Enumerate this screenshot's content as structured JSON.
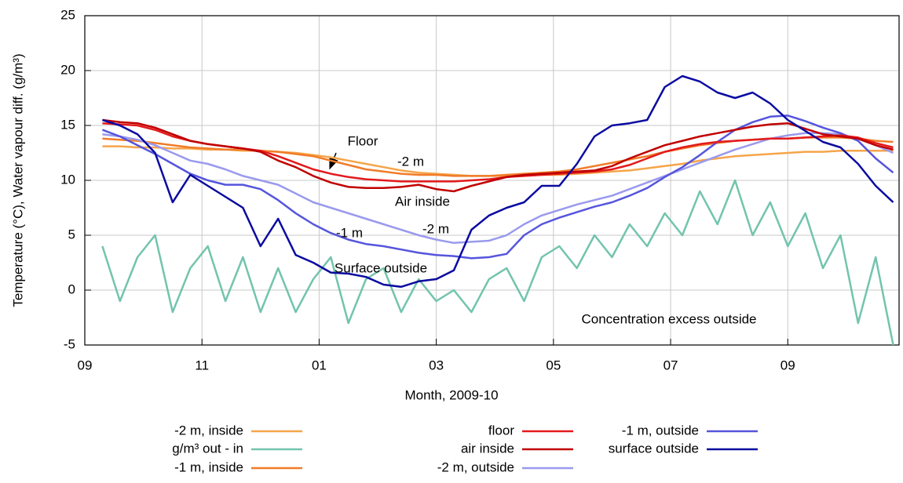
{
  "chart_data": {
    "type": "line",
    "xlabel": "Month, 2009-10",
    "ylabel": "Temperature (°C), Water vapour diff. (g/m³)",
    "x": [
      0.3,
      0.6,
      0.9,
      1.2,
      1.5,
      1.8,
      2.1,
      2.4,
      2.7,
      3.0,
      3.3,
      3.6,
      3.9,
      4.2,
      4.5,
      4.8,
      5.1,
      5.4,
      5.7,
      6.0,
      6.3,
      6.6,
      6.9,
      7.2,
      7.5,
      7.8,
      8.1,
      8.4,
      8.7,
      9.0,
      9.3,
      9.6,
      9.9,
      10.2,
      10.5,
      10.8,
      11.1,
      11.4,
      11.7,
      12.0,
      12.3,
      12.6,
      12.9,
      13.2,
      13.5,
      13.8
    ],
    "xlim": [
      0,
      13.9
    ],
    "xticks": [
      {
        "value": 0,
        "label": "09"
      },
      {
        "value": 2,
        "label": "11"
      },
      {
        "value": 4,
        "label": "01"
      },
      {
        "value": 6,
        "label": "03"
      },
      {
        "value": 8,
        "label": "05"
      },
      {
        "value": 10,
        "label": "07"
      },
      {
        "value": 12,
        "label": "09"
      }
    ],
    "ylim": [
      -5,
      25
    ],
    "yticks": [
      -5,
      0,
      5,
      10,
      15,
      20,
      25
    ],
    "grid": true,
    "series": [
      {
        "name": "-2 m, inside",
        "color": "#f5a54a",
        "values": [
          13.1,
          13.1,
          13.0,
          13.0,
          12.9,
          12.9,
          12.8,
          12.8,
          12.7,
          12.7,
          12.6,
          12.5,
          12.3,
          12.1,
          11.8,
          11.5,
          11.2,
          10.9,
          10.7,
          10.6,
          10.5,
          10.4,
          10.4,
          10.4,
          10.4,
          10.5,
          10.5,
          10.6,
          10.7,
          10.8,
          10.9,
          11.1,
          11.3,
          11.5,
          11.8,
          12.0,
          12.2,
          12.3,
          12.4,
          12.5,
          12.6,
          12.6,
          12.7,
          12.7,
          12.7,
          12.7
        ]
      },
      {
        "name": "g/m³ out - in",
        "color": "#72c4ad",
        "values": [
          4,
          -1,
          3,
          5,
          -2,
          2,
          4,
          -1,
          3,
          -2,
          2,
          -2,
          1,
          3,
          -3,
          1,
          2,
          -2,
          1,
          -1,
          0,
          -2,
          1,
          2,
          -1,
          3,
          4,
          2,
          5,
          3,
          6,
          4,
          7,
          5,
          9,
          6,
          10,
          5,
          8,
          4,
          7,
          2,
          5,
          -3,
          3,
          -5
        ]
      },
      {
        "name": "-1 m, inside",
        "color": "#f07c28",
        "values": [
          13.8,
          13.7,
          13.6,
          13.4,
          13.2,
          13.0,
          12.9,
          12.8,
          12.8,
          12.7,
          12.6,
          12.4,
          12.2,
          11.8,
          11.4,
          11.0,
          10.8,
          10.6,
          10.5,
          10.5,
          10.4,
          10.4,
          10.4,
          10.5,
          10.6,
          10.7,
          10.8,
          11.0,
          11.3,
          11.6,
          11.9,
          12.2,
          12.6,
          12.9,
          13.2,
          13.4,
          13.6,
          13.7,
          13.8,
          13.8,
          13.9,
          13.9,
          13.9,
          13.8,
          13.6,
          13.5
        ]
      },
      {
        "name": "floor",
        "color": "#e31a1c",
        "values": [
          15.2,
          15.1,
          15.0,
          14.6,
          14.0,
          13.6,
          13.3,
          13.1,
          12.9,
          12.7,
          12.2,
          11.6,
          11.0,
          10.6,
          10.3,
          10.1,
          10.0,
          9.9,
          9.9,
          9.9,
          9.9,
          10.0,
          10.1,
          10.3,
          10.4,
          10.5,
          10.6,
          10.7,
          10.8,
          11.0,
          11.4,
          12.0,
          12.6,
          13.0,
          13.3,
          13.5,
          13.6,
          13.7,
          13.8,
          13.8,
          13.9,
          14.0,
          14.1,
          13.9,
          13.4,
          13.0
        ]
      },
      {
        "name": "air inside",
        "color": "#c00000",
        "values": [
          15.5,
          15.3,
          15.2,
          14.8,
          14.2,
          13.6,
          13.3,
          13.1,
          12.9,
          12.6,
          11.8,
          11.2,
          10.4,
          9.8,
          9.4,
          9.3,
          9.3,
          9.4,
          9.6,
          9.2,
          9.0,
          9.5,
          9.9,
          10.3,
          10.5,
          10.6,
          10.7,
          10.8,
          10.9,
          11.3,
          12.0,
          12.6,
          13.2,
          13.6,
          14.0,
          14.3,
          14.6,
          14.9,
          15.1,
          15.2,
          14.7,
          14.2,
          14.0,
          13.8,
          13.2,
          12.8
        ]
      },
      {
        "name": "-2 m, outside",
        "color": "#9a9aee",
        "values": [
          14.2,
          14.0,
          13.7,
          13.2,
          12.5,
          11.8,
          11.5,
          11.0,
          10.4,
          10.0,
          9.6,
          8.8,
          8.0,
          7.5,
          7.0,
          6.5,
          6.0,
          5.5,
          5.0,
          4.6,
          4.3,
          4.4,
          4.5,
          5.0,
          6.0,
          6.8,
          7.3,
          7.8,
          8.2,
          8.6,
          9.2,
          9.8,
          10.4,
          11.0,
          11.6,
          12.2,
          12.8,
          13.3,
          13.8,
          14.1,
          14.3,
          14.3,
          14.2,
          13.8,
          13.2,
          12.5
        ]
      },
      {
        "name": "-1 m, outside",
        "color": "#5555dd",
        "values": [
          14.6,
          14.0,
          13.2,
          12.4,
          11.5,
          10.6,
          10.0,
          9.6,
          9.6,
          9.2,
          8.2,
          7.0,
          6.0,
          5.2,
          4.6,
          4.2,
          4.0,
          3.7,
          3.4,
          3.2,
          3.1,
          2.9,
          3.0,
          3.3,
          5.0,
          6.0,
          6.6,
          7.1,
          7.6,
          8.0,
          8.6,
          9.3,
          10.3,
          11.2,
          12.3,
          13.5,
          14.6,
          15.3,
          15.8,
          15.9,
          15.4,
          14.8,
          14.3,
          13.6,
          12.0,
          10.7
        ]
      },
      {
        "name": "surface outside",
        "color": "#0a0aa0",
        "values": [
          15.5,
          15.0,
          14.2,
          12.5,
          8.0,
          10.5,
          9.5,
          8.5,
          7.5,
          4.0,
          6.5,
          3.2,
          2.5,
          1.6,
          1.5,
          1.2,
          0.5,
          0.3,
          0.8,
          1.0,
          1.8,
          5.5,
          6.8,
          7.5,
          8.0,
          9.5,
          9.5,
          11.5,
          14.0,
          15.0,
          15.2,
          15.5,
          18.5,
          19.5,
          19.0,
          18.0,
          17.5,
          18.0,
          17.0,
          15.5,
          14.5,
          13.5,
          13.0,
          11.5,
          9.5,
          8.0
        ]
      }
    ],
    "annotations": [
      "Floor",
      "-2 m",
      "Air inside",
      "-1 m",
      "-2 m",
      "Surface outside",
      "Concentration excess outside"
    ]
  }
}
